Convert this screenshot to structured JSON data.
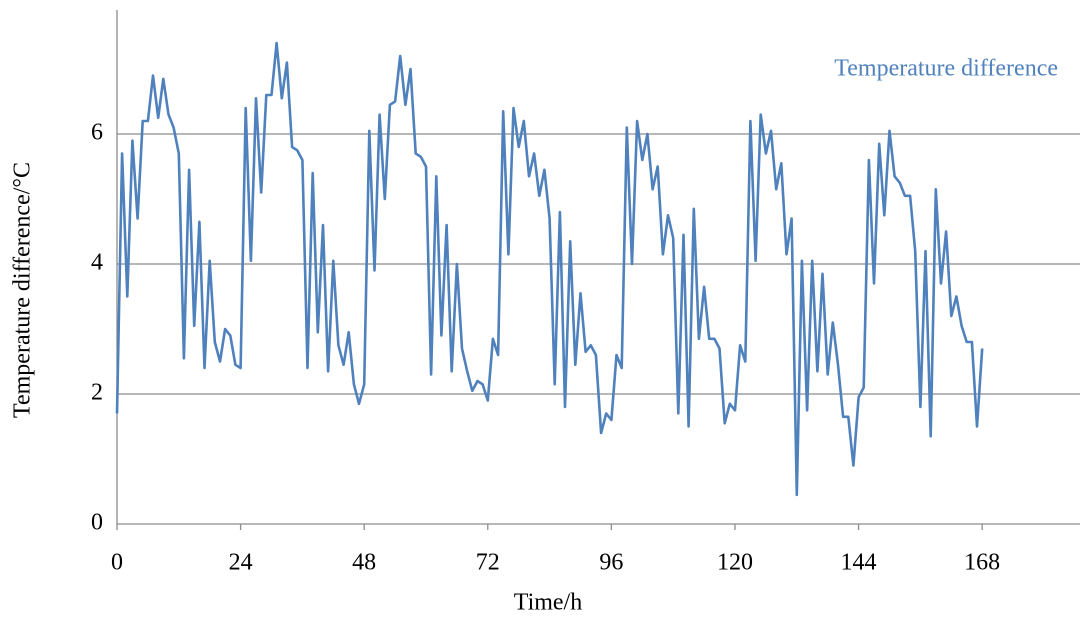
{
  "chart_data": {
    "type": "line",
    "x_label": "Time/h",
    "y_label": "Temperature difference/°C",
    "x": [
      0,
      1,
      2,
      3,
      4,
      5,
      6,
      7,
      8,
      9,
      10,
      11,
      12,
      13,
      14,
      15,
      16,
      17,
      18,
      19,
      20,
      21,
      22,
      23,
      24,
      25,
      26,
      27,
      28,
      29,
      30,
      31,
      32,
      33,
      34,
      35,
      36,
      37,
      38,
      39,
      40,
      41,
      42,
      43,
      44,
      45,
      46,
      47,
      48,
      49,
      50,
      51,
      52,
      53,
      54,
      55,
      56,
      57,
      58,
      59,
      60,
      61,
      62,
      63,
      64,
      65,
      66,
      67,
      68,
      69,
      70,
      71,
      72,
      73,
      74,
      75,
      76,
      77,
      78,
      79,
      80,
      81,
      82,
      83,
      84,
      85,
      86,
      87,
      88,
      89,
      90,
      91,
      92,
      93,
      94,
      95,
      96,
      97,
      98,
      99,
      100,
      101,
      102,
      103,
      104,
      105,
      106,
      107,
      108,
      109,
      110,
      111,
      112,
      113,
      114,
      115,
      116,
      117,
      118,
      119,
      120,
      121,
      122,
      123,
      124,
      125,
      126,
      127,
      128,
      129,
      130,
      131,
      132,
      133,
      134,
      135,
      136,
      137,
      138,
      139,
      140,
      141,
      142,
      143,
      144,
      145,
      146,
      147,
      148,
      149,
      150,
      151,
      152,
      153,
      154,
      155,
      156,
      157,
      158,
      159,
      160,
      161,
      162,
      163,
      164,
      165,
      166,
      167,
      168
    ],
    "series": [
      {
        "name": "Temperature difference",
        "color": "#4f81bd",
        "values": [
          1.7,
          5.7,
          3.5,
          5.9,
          4.7,
          6.2,
          6.2,
          6.9,
          6.25,
          6.85,
          6.3,
          6.1,
          5.7,
          2.55,
          5.45,
          3.05,
          4.65,
          2.4,
          4.05,
          2.8,
          2.5,
          3.0,
          2.9,
          2.45,
          2.4,
          6.4,
          4.05,
          6.55,
          5.1,
          6.6,
          6.6,
          7.4,
          6.55,
          7.1,
          5.8,
          5.75,
          5.6,
          2.4,
          5.4,
          2.95,
          4.6,
          2.35,
          4.05,
          2.75,
          2.45,
          2.95,
          2.15,
          1.85,
          2.15,
          6.05,
          3.9,
          6.3,
          5.0,
          6.45,
          6.5,
          7.2,
          6.45,
          7.0,
          5.7,
          5.65,
          5.5,
          2.3,
          5.35,
          2.9,
          4.6,
          2.35,
          4.0,
          2.7,
          2.35,
          2.05,
          2.2,
          2.15,
          1.9,
          2.85,
          2.6,
          6.35,
          4.15,
          6.4,
          5.8,
          6.2,
          5.35,
          5.7,
          5.05,
          5.45,
          4.7,
          2.15,
          4.8,
          1.8,
          4.35,
          2.45,
          3.55,
          2.65,
          2.75,
          2.6,
          1.4,
          1.7,
          1.6,
          2.6,
          2.4,
          6.1,
          4.0,
          6.2,
          5.6,
          6.0,
          5.15,
          5.5,
          4.15,
          4.75,
          4.4,
          1.7,
          4.45,
          1.5,
          4.85,
          2.85,
          3.65,
          2.85,
          2.85,
          2.7,
          1.55,
          1.85,
          1.75,
          2.75,
          2.5,
          6.2,
          4.05,
          6.3,
          5.7,
          6.05,
          5.15,
          5.55,
          4.15,
          4.7,
          0.45,
          4.05,
          1.75,
          4.05,
          2.35,
          3.85,
          2.3,
          3.1,
          2.45,
          1.65,
          1.65,
          0.9,
          1.95,
          2.1,
          5.6,
          3.7,
          5.85,
          4.75,
          6.05,
          5.35,
          5.25,
          5.05,
          5.05,
          4.2,
          1.8,
          4.2,
          1.35,
          5.15,
          3.7,
          4.5,
          3.2,
          3.5,
          3.05,
          2.8,
          2.8,
          1.5,
          2.7
        ]
      }
    ],
    "xlim": [
      0,
      187
    ],
    "xticks": [
      0,
      24,
      48,
      72,
      96,
      120,
      144,
      168
    ],
    "ylim": [
      0,
      8
    ],
    "yticks": [
      0,
      2,
      4,
      6
    ],
    "grid": true,
    "legend": "top-right"
  }
}
